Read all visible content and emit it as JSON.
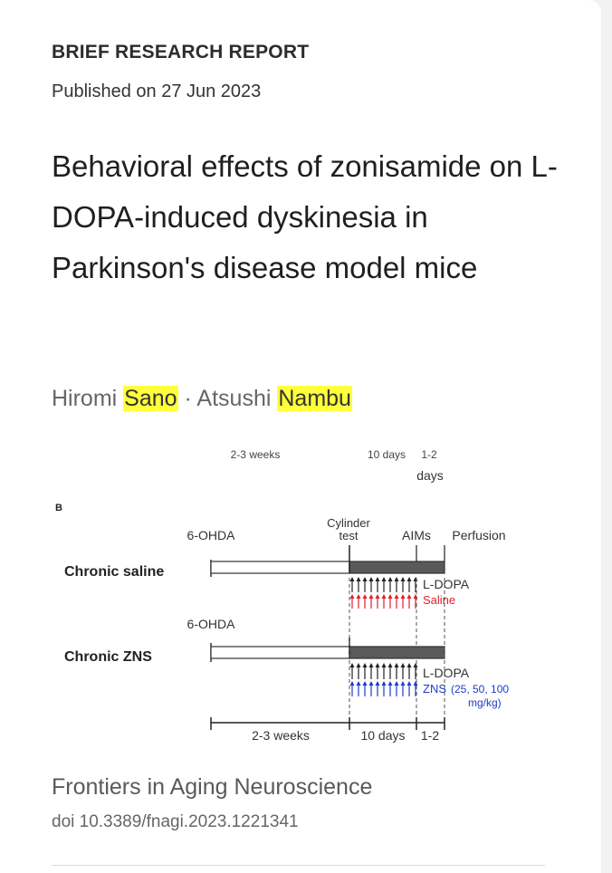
{
  "article": {
    "type": "BRIEF RESEARCH REPORT",
    "published": "Published on 27 Jun 2023",
    "title": "Behavioral effects of zonisamide on L-DOPA-induced dyskinesia in Parkinson's disease model mice",
    "authors": [
      {
        "first": "Hiromi",
        "last": "Sano"
      },
      {
        "first": "Atsushi",
        "last": "Nambu"
      }
    ],
    "author_separator": "·",
    "journal": "Frontiers in Aging Neuroscience",
    "doi": "doi 10.3389/fnagi.2023.1221341"
  },
  "figure": {
    "top_durations": [
      "2-3 weeks",
      "10 days",
      "1-2",
      "days"
    ],
    "panel_label": "B",
    "event_6ohda": "6-OHDA",
    "event_cylinder_1": "Cylinder",
    "event_cylinder_2": "test",
    "event_aims": "AIMs",
    "event_perfusion": "Perfusion",
    "group_saline": "Chronic saline",
    "group_zns": "Chronic ZNS",
    "drug_ldopa": "L-DOPA",
    "drug_saline": "Saline",
    "drug_zns": "ZNS",
    "drug_zns_doses_1": "(25, 50, 100",
    "drug_zns_doses_2": "mg/kg)",
    "bottom_durations": [
      "2-3 weeks",
      "10 days",
      "1-2"
    ],
    "colors": {
      "saline": "#e0202a",
      "zns": "#1e3cc8",
      "bar_dark": "#5a5a5a"
    }
  }
}
